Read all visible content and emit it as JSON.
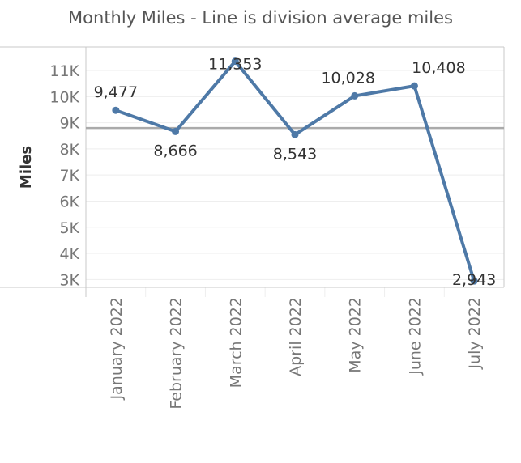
{
  "chart_data": {
    "type": "line",
    "title": "Monthly Miles - Line is division average miles",
    "xlabel": "",
    "ylabel": "Miles",
    "categories": [
      "January 2022",
      "February 2022",
      "March 2022",
      "April 2022",
      "May 2022",
      "June 2022",
      "July 2022"
    ],
    "values": [
      9477,
      8666,
      11353,
      8543,
      10028,
      10408,
      2943
    ],
    "data_labels": [
      "9,477",
      "8,666",
      "11,353",
      "8,543",
      "10,028",
      "10,408",
      "2,943"
    ],
    "yticks": [
      3000,
      4000,
      5000,
      6000,
      7000,
      8000,
      9000,
      10000,
      11000
    ],
    "ytick_labels": [
      "3K",
      "4K",
      "5K",
      "6K",
      "7K",
      "8K",
      "9K",
      "10K",
      "11K"
    ],
    "ylim": [
      2700,
      11900
    ],
    "reference_line": 8800,
    "grid": true,
    "colors": {
      "line": "#4e79a7",
      "reference": "#aaaaaa",
      "grid": "#eeeeee",
      "axis": "#c8c8c8"
    }
  }
}
